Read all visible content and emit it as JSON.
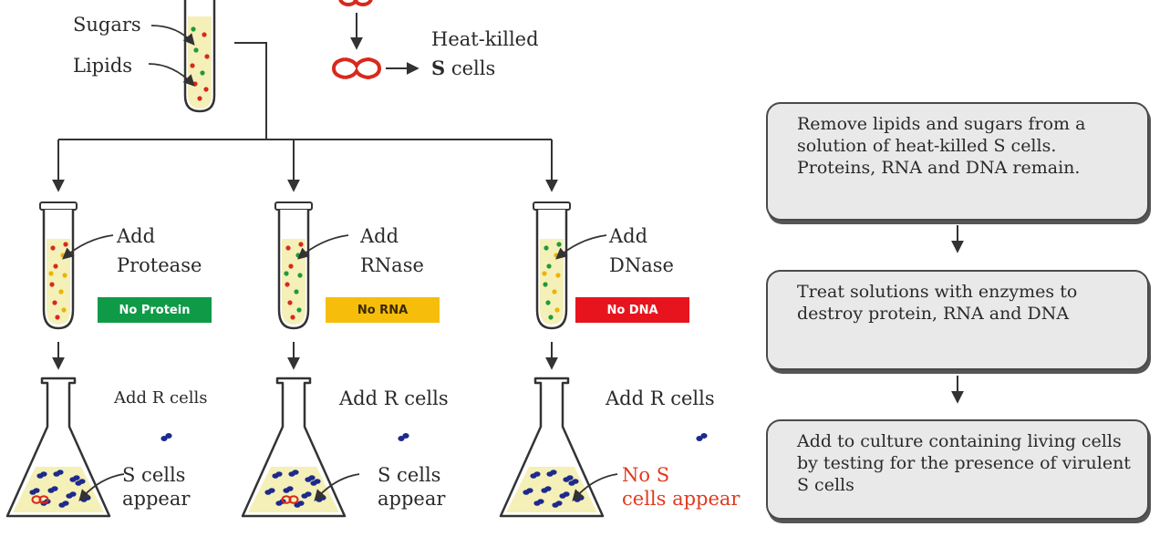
{
  "labels": {
    "sugars": "Sugars",
    "lipids": "Lipids",
    "heat_killed_line1": "Heat-killed",
    "heat_killed_s": "S",
    "heat_killed_cells": " cells"
  },
  "branches": [
    {
      "add_enzyme_line1": "Add",
      "add_enzyme_line2": "Protease",
      "badge": "No Protein",
      "badge_color": "#0f9a48",
      "badge_text_color": "#ffffff",
      "add_r": "Add R cells",
      "result_line1": "S cells",
      "result_line2": "appear",
      "result_color": "#2a2a2a"
    },
    {
      "add_enzyme_line1": "Add",
      "add_enzyme_line2": "RNase",
      "badge": "No RNA",
      "badge_color": "#f6be0b",
      "badge_text_color": "#3a2a00",
      "add_r": "Add R cells",
      "result_line1": "S cells",
      "result_line2": "appear",
      "result_color": "#2a2a2a"
    },
    {
      "add_enzyme_line1": "Add",
      "add_enzyme_line2": "DNase",
      "badge": "No DNA",
      "badge_color": "#e8141d",
      "badge_text_color": "#ffffff",
      "add_r": "Add R cells",
      "result_line1": "No S",
      "result_line2": "cells appear",
      "result_color": "#e03a1e"
    }
  ],
  "steps": [
    "Remove lipids and sugars from a solution of heat-killed S cells. Proteins, RNA and DNA remain.",
    "Treat solutions with enzymes to destroy protein, RNA and DNA",
    "Add to culture containing living cells by testing for the presence of virulent S cells"
  ],
  "colors": {
    "solution": "#f4f0b8",
    "r_cell": "#1c2a8c",
    "s_cell": "#d9291c",
    "dot_red": "#d9291c",
    "dot_green": "#1f9a3a",
    "dot_yellow": "#e9b40a"
  }
}
